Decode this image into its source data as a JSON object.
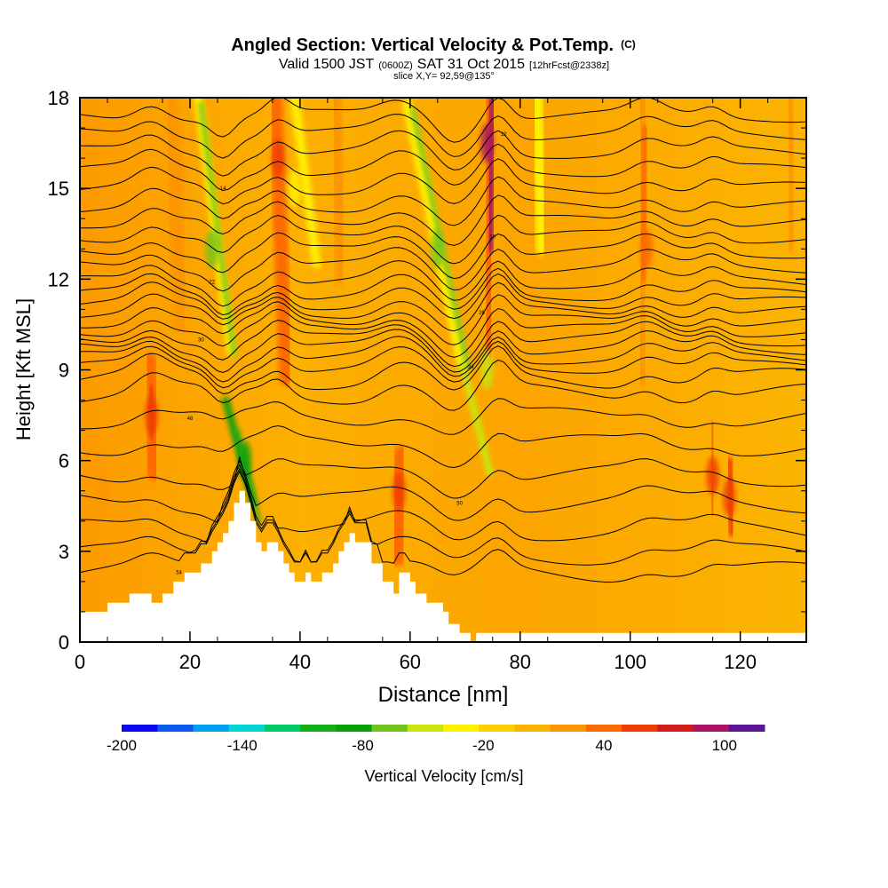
{
  "titles": {
    "main": "Angled Section: Vertical Velocity & Pot.Temp.",
    "main_unit": "(C)",
    "valid_pre": "Valid 1500 JST",
    "valid_z": "(0600Z)",
    "valid_date": "SAT 31 Oct 2015",
    "valid_fcst": "[12hrFcst@2338z]",
    "slice": "slice X,Y= 92,59@135°"
  },
  "chart_data": {
    "type": "heatmap",
    "xlabel": "Distance [nm]",
    "ylabel": "Height [Kft MSL]",
    "xlim": [
      0,
      132
    ],
    "ylim": [
      0,
      18
    ],
    "x_ticks": [
      "0",
      "20",
      "40",
      "60",
      "80",
      "100",
      "120"
    ],
    "y_ticks": [
      "0",
      "3",
      "6",
      "9",
      "12",
      "15",
      "18"
    ],
    "terrain": {
      "x": [
        0,
        5,
        5,
        9,
        9,
        13,
        13,
        15,
        15,
        17,
        17,
        19,
        19,
        22,
        22,
        24,
        24,
        25,
        25,
        26,
        26,
        27,
        27,
        28,
        28,
        29,
        29,
        30,
        30,
        31,
        31,
        32,
        32,
        33,
        33,
        34,
        34,
        36,
        36,
        37,
        37,
        38,
        38,
        39,
        39,
        41,
        41,
        42,
        42,
        44,
        44,
        46,
        46,
        47,
        47,
        48,
        48,
        49,
        49,
        50,
        50,
        53,
        53,
        55,
        55,
        57,
        57,
        58,
        58,
        60,
        60,
        61,
        61,
        63,
        63,
        66,
        66,
        67,
        67,
        69,
        69,
        71,
        71,
        72,
        72,
        132
      ],
      "kft": [
        1.0,
        1.0,
        1.3,
        1.3,
        1.6,
        1.6,
        1.3,
        1.3,
        1.6,
        1.6,
        2.0,
        2.0,
        2.3,
        2.3,
        2.6,
        2.6,
        3.0,
        3.0,
        3.3,
        3.3,
        3.6,
        3.6,
        4.0,
        4.0,
        4.6,
        4.6,
        5.0,
        5.0,
        4.6,
        4.6,
        4.0,
        4.0,
        3.3,
        3.3,
        3.0,
        3.0,
        3.3,
        3.3,
        3.0,
        3.0,
        2.6,
        2.6,
        2.3,
        2.3,
        2.0,
        2.0,
        2.3,
        2.3,
        2.0,
        2.0,
        2.3,
        2.3,
        2.6,
        2.6,
        3.0,
        3.0,
        3.3,
        3.3,
        3.6,
        3.6,
        3.3,
        3.3,
        2.6,
        2.6,
        2.0,
        2.0,
        1.6,
        1.6,
        2.3,
        2.3,
        2.0,
        2.0,
        1.6,
        1.6,
        1.3,
        1.3,
        1.0,
        1.0,
        0.6,
        0.6,
        0.3,
        0.3,
        0.0,
        0.0,
        0.3,
        0.3
      ]
    },
    "w_features": [
      {
        "x": 13,
        "y": 7.5,
        "w_cms": 50
      },
      {
        "x": 4,
        "y": 5,
        "w_cms": 20
      },
      {
        "x": 18,
        "y": 15.5,
        "w_cms": 30
      },
      {
        "x": 24,
        "y": 13,
        "w_cms": -60
      },
      {
        "x": 30,
        "y": 6,
        "w_cms": -90
      },
      {
        "x": 36,
        "y": 16,
        "w_cms": 50
      },
      {
        "x": 39,
        "y": 15,
        "w_cms": -40
      },
      {
        "x": 58,
        "y": 5,
        "w_cms": 50
      },
      {
        "x": 65,
        "y": 13,
        "w_cms": -60
      },
      {
        "x": 74,
        "y": 16.5,
        "w_cms": 100
      },
      {
        "x": 74,
        "y": 9,
        "w_cms": -50
      },
      {
        "x": 103,
        "y": 13,
        "w_cms": 40
      },
      {
        "x": 115,
        "y": 5.5,
        "w_cms": 50
      },
      {
        "x": 118,
        "y": 4.8,
        "w_cms": 50
      }
    ],
    "theta_label_samples": [
      "54",
      "50",
      "48",
      "34",
      "30",
      "26",
      "22",
      "18",
      "14",
      "12"
    ],
    "theta_levels_kft": [
      2.3,
      2.9,
      3.7,
      4.6,
      5.5,
      6.5,
      7.4,
      8.2,
      8.7,
      9.1,
      9.4,
      9.7,
      10.0,
      10.3,
      10.6,
      10.9,
      11.2,
      11.5,
      11.9,
      12.4,
      12.9,
      13.4,
      13.9,
      14.4,
      15.0,
      15.6,
      16.2,
      16.8,
      17.4
    ],
    "colorbar": {
      "label": "Vertical Velocity [cm/s]",
      "ticks": [
        "-200",
        "-140",
        "-80",
        "-20",
        "40",
        "100"
      ],
      "range": [
        -200,
        120
      ],
      "colors": [
        "#0a0af0",
        "#0a5af0",
        "#00a0f0",
        "#00d6d6",
        "#00cc66",
        "#12b018",
        "#0aa00a",
        "#72c41c",
        "#c8e60a",
        "#fff000",
        "#fcd000",
        "#fcb400",
        "#fc9600",
        "#fc6a00",
        "#f03c00",
        "#d21c1c",
        "#aa1464",
        "#5a1496"
      ]
    }
  }
}
